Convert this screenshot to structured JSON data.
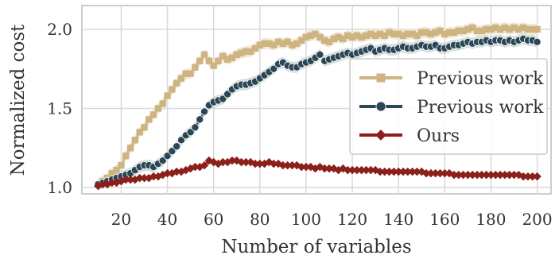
{
  "chart_data": {
    "type": "line",
    "title": "",
    "xlabel": "Number of variables",
    "ylabel": "Normalized cost",
    "xlim": [
      3,
      206
    ],
    "ylim": [
      0.96,
      2.15
    ],
    "xticks": [
      20,
      40,
      60,
      80,
      100,
      120,
      140,
      160,
      180,
      200
    ],
    "xtick_labels": [
      "20",
      "40",
      "60",
      "80",
      "100",
      "120",
      "140",
      "160",
      "180",
      "200"
    ],
    "yticks": [
      1.0,
      1.5,
      2.0
    ],
    "ytick_labels": [
      "1.0",
      "1.5",
      "2.0"
    ],
    "grid": true,
    "legend_position": "center-right",
    "series": [
      {
        "name": "Previous work",
        "color": "#cdb482",
        "band_color": "#efe6cc",
        "marker": "square",
        "x": [
          10,
          12,
          14,
          16,
          18,
          20,
          22,
          24,
          26,
          28,
          30,
          32,
          34,
          36,
          38,
          40,
          42,
          44,
          46,
          48,
          50,
          52,
          54,
          56,
          58,
          60,
          62,
          64,
          66,
          68,
          70,
          72,
          74,
          76,
          78,
          80,
          82,
          84,
          86,
          88,
          90,
          92,
          94,
          96,
          98,
          100,
          102,
          104,
          106,
          108,
          110,
          112,
          114,
          116,
          118,
          120,
          122,
          124,
          126,
          128,
          130,
          132,
          134,
          136,
          138,
          140,
          142,
          144,
          146,
          148,
          150,
          152,
          154,
          156,
          158,
          160,
          162,
          164,
          166,
          168,
          170,
          172,
          174,
          176,
          178,
          180,
          182,
          184,
          186,
          188,
          190,
          192,
          194,
          196,
          198,
          200
        ],
        "values": [
          1.02,
          1.04,
          1.06,
          1.09,
          1.11,
          1.14,
          1.2,
          1.25,
          1.3,
          1.35,
          1.38,
          1.43,
          1.46,
          1.5,
          1.53,
          1.58,
          1.62,
          1.66,
          1.69,
          1.72,
          1.72,
          1.76,
          1.8,
          1.84,
          1.8,
          1.77,
          1.8,
          1.83,
          1.81,
          1.82,
          1.84,
          1.85,
          1.86,
          1.86,
          1.88,
          1.9,
          1.91,
          1.91,
          1.9,
          1.92,
          1.91,
          1.92,
          1.9,
          1.91,
          1.93,
          1.95,
          1.96,
          1.97,
          1.95,
          1.93,
          1.92,
          1.94,
          1.95,
          1.94,
          1.96,
          1.95,
          1.96,
          1.95,
          1.96,
          1.97,
          1.96,
          1.97,
          1.96,
          1.98,
          1.97,
          1.97,
          1.96,
          1.97,
          1.97,
          1.96,
          1.98,
          1.98,
          1.97,
          1.98,
          1.99,
          1.97,
          1.98,
          1.98,
          1.99,
          1.99,
          2.0,
          2.01,
          1.99,
          1.99,
          2.0,
          2.0,
          2.01,
          2.0,
          2.01,
          2.0,
          2.01,
          2.0,
          2.01,
          2.0,
          2.0,
          2.0
        ]
      },
      {
        "name": "Previous work",
        "color": "#2b4655",
        "band_color": "#c9d3d6",
        "marker": "circle",
        "x": [
          10,
          12,
          14,
          16,
          18,
          20,
          22,
          24,
          26,
          28,
          30,
          32,
          34,
          36,
          38,
          40,
          42,
          44,
          46,
          48,
          50,
          52,
          54,
          56,
          58,
          60,
          62,
          64,
          66,
          68,
          70,
          72,
          74,
          76,
          78,
          80,
          82,
          84,
          86,
          88,
          90,
          92,
          94,
          96,
          98,
          100,
          102,
          104,
          106,
          108,
          110,
          112,
          114,
          116,
          118,
          120,
          122,
          124,
          126,
          128,
          130,
          132,
          134,
          136,
          138,
          140,
          142,
          144,
          146,
          148,
          150,
          152,
          154,
          156,
          158,
          160,
          162,
          164,
          166,
          168,
          170,
          172,
          174,
          176,
          178,
          180,
          182,
          184,
          186,
          188,
          190,
          192,
          194,
          196,
          198,
          200
        ],
        "values": [
          1.02,
          1.03,
          1.04,
          1.05,
          1.06,
          1.07,
          1.08,
          1.09,
          1.11,
          1.13,
          1.14,
          1.14,
          1.13,
          1.15,
          1.17,
          1.2,
          1.23,
          1.26,
          1.3,
          1.33,
          1.35,
          1.38,
          1.43,
          1.48,
          1.52,
          1.54,
          1.55,
          1.56,
          1.59,
          1.62,
          1.64,
          1.65,
          1.65,
          1.66,
          1.67,
          1.69,
          1.71,
          1.73,
          1.75,
          1.78,
          1.79,
          1.77,
          1.76,
          1.76,
          1.78,
          1.79,
          1.8,
          1.82,
          1.84,
          1.8,
          1.81,
          1.82,
          1.83,
          1.84,
          1.85,
          1.84,
          1.85,
          1.86,
          1.87,
          1.88,
          1.86,
          1.87,
          1.88,
          1.87,
          1.87,
          1.88,
          1.89,
          1.88,
          1.88,
          1.89,
          1.9,
          1.89,
          1.89,
          1.9,
          1.88,
          1.88,
          1.89,
          1.9,
          1.9,
          1.91,
          1.92,
          1.91,
          1.92,
          1.92,
          1.93,
          1.92,
          1.93,
          1.93,
          1.92,
          1.93,
          1.92,
          1.93,
          1.94,
          1.93,
          1.93,
          1.92
        ]
      },
      {
        "name": "Ours",
        "color": "#8b1f1a",
        "marker": "diamond",
        "x": [
          10,
          12,
          14,
          16,
          18,
          20,
          22,
          24,
          26,
          28,
          30,
          32,
          34,
          36,
          38,
          40,
          42,
          44,
          46,
          48,
          50,
          52,
          54,
          56,
          58,
          60,
          62,
          64,
          66,
          68,
          70,
          72,
          74,
          76,
          78,
          80,
          82,
          84,
          86,
          88,
          90,
          92,
          94,
          96,
          98,
          100,
          102,
          104,
          106,
          108,
          110,
          112,
          114,
          116,
          118,
          120,
          122,
          124,
          126,
          128,
          130,
          132,
          134,
          136,
          138,
          140,
          142,
          144,
          146,
          148,
          150,
          152,
          154,
          156,
          158,
          160,
          162,
          164,
          166,
          168,
          170,
          172,
          174,
          176,
          178,
          180,
          182,
          184,
          186,
          188,
          190,
          192,
          194,
          196,
          198,
          200
        ],
        "values": [
          1.01,
          1.02,
          1.02,
          1.03,
          1.03,
          1.04,
          1.05,
          1.05,
          1.05,
          1.06,
          1.06,
          1.06,
          1.07,
          1.07,
          1.08,
          1.09,
          1.09,
          1.1,
          1.1,
          1.11,
          1.12,
          1.13,
          1.13,
          1.14,
          1.17,
          1.16,
          1.15,
          1.16,
          1.16,
          1.17,
          1.17,
          1.16,
          1.16,
          1.16,
          1.15,
          1.15,
          1.15,
          1.16,
          1.15,
          1.15,
          1.14,
          1.14,
          1.14,
          1.14,
          1.13,
          1.13,
          1.13,
          1.12,
          1.13,
          1.12,
          1.12,
          1.12,
          1.11,
          1.12,
          1.11,
          1.11,
          1.11,
          1.11,
          1.11,
          1.11,
          1.11,
          1.1,
          1.1,
          1.1,
          1.1,
          1.1,
          1.1,
          1.1,
          1.1,
          1.1,
          1.1,
          1.09,
          1.09,
          1.09,
          1.09,
          1.09,
          1.09,
          1.08,
          1.08,
          1.08,
          1.08,
          1.08,
          1.08,
          1.08,
          1.08,
          1.08,
          1.08,
          1.08,
          1.08,
          1.08,
          1.08,
          1.08,
          1.07,
          1.07,
          1.07,
          1.07
        ]
      }
    ]
  }
}
